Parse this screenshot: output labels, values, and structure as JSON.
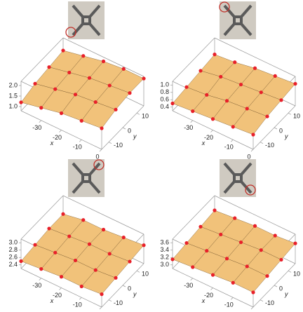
{
  "chart_data": [
    {
      "type": "surface3d",
      "xlabel": "x",
      "ylabel": "y",
      "xs": [
        -40,
        -30,
        -20,
        -10,
        0
      ],
      "ys": [
        -15,
        -5,
        5,
        15
      ],
      "z": [
        [
          1.2,
          1.4,
          1.6,
          1.7,
          1.8
        ],
        [
          1.4,
          1.6,
          1.8,
          1.9,
          2.0
        ],
        [
          1.5,
          1.7,
          1.9,
          2.0,
          2.1
        ],
        [
          1.6,
          1.8,
          2.0,
          2.1,
          2.1
        ]
      ],
      "xlim": [
        -40,
        0
      ],
      "ylim": [
        -15,
        15
      ],
      "zlim": [
        0.8,
        2.2
      ],
      "xticks": [
        -30,
        -20,
        -10,
        0
      ],
      "yticks": [
        10,
        0,
        -10
      ],
      "zticks": [
        {
          "value": 1,
          "label": "1.0"
        },
        1.5,
        {
          "value": 2,
          "label": "2.0"
        }
      ],
      "surface_color": "#f1c27a",
      "point_color": "#e8202a"
    },
    {
      "type": "surface3d",
      "xlabel": "x",
      "ylabel": "y",
      "xs": [
        -40,
        -30,
        -20,
        -10,
        0
      ],
      "ys": [
        -15,
        -5,
        5,
        15
      ],
      "z": [
        [
          0.5,
          0.55,
          0.6,
          0.65,
          0.7
        ],
        [
          0.55,
          0.6,
          0.7,
          0.75,
          0.8
        ],
        [
          0.6,
          0.7,
          0.75,
          0.8,
          0.85
        ],
        [
          0.65,
          0.7,
          0.8,
          0.85,
          0.9
        ]
      ],
      "xlim": [
        -40,
        0
      ],
      "ylim": [
        -15,
        15
      ],
      "zlim": [
        0.3,
        1.1
      ],
      "xticks": [
        -30,
        -20,
        -10,
        0
      ],
      "yticks": [
        10,
        0,
        -10
      ],
      "zticks": [
        0.4,
        0.6,
        0.8,
        {
          "value": 1,
          "label": "1.0"
        }
      ],
      "surface_color": "#f1c27a",
      "point_color": "#e8202a"
    },
    {
      "type": "surface3d",
      "xlabel": "x",
      "ylabel": "y",
      "xs": [
        -40,
        -30,
        -20,
        -10,
        0
      ],
      "ys": [
        -15,
        -5,
        5,
        15
      ],
      "z": [
        [
          2.5,
          2.55,
          2.6,
          2.6,
          2.65
        ],
        [
          2.55,
          2.6,
          2.65,
          2.65,
          2.7
        ],
        [
          2.6,
          2.65,
          2.7,
          2.7,
          2.75
        ],
        [
          2.6,
          2.7,
          2.7,
          2.75,
          2.8
        ]
      ],
      "xlim": [
        -40,
        0
      ],
      "ylim": [
        -15,
        15
      ],
      "zlim": [
        2.3,
        3.1
      ],
      "xticks": [
        -30,
        -20,
        -10,
        0
      ],
      "yticks": [
        10,
        0,
        -10
      ],
      "zticks": [
        2.4,
        2.6,
        2.8,
        {
          "value": 3,
          "label": "3.0"
        }
      ],
      "surface_color": "#f1c27a",
      "point_color": "#e8202a"
    },
    {
      "type": "surface3d",
      "xlabel": "x",
      "ylabel": "y",
      "xs": [
        -40,
        -30,
        -20,
        -10,
        0
      ],
      "ys": [
        -15,
        -5,
        5,
        15
      ],
      "z": [
        [
          3.15,
          3.2,
          3.25,
          3.3,
          3.3
        ],
        [
          3.2,
          3.25,
          3.3,
          3.35,
          3.35
        ],
        [
          3.25,
          3.3,
          3.35,
          3.4,
          3.4
        ],
        [
          3.3,
          3.35,
          3.4,
          3.4,
          3.45
        ]
      ],
      "xlim": [
        -40,
        0
      ],
      "ylim": [
        -15,
        15
      ],
      "zlim": [
        2.9,
        3.7
      ],
      "xticks": [
        -30,
        -20,
        -10,
        0
      ],
      "yticks": [
        10,
        0,
        -10
      ],
      "zticks": [
        {
          "value": 3,
          "label": "3.0"
        },
        3.2,
        3.4,
        3.6
      ],
      "surface_color": "#f1c27a",
      "point_color": "#e8202a"
    }
  ]
}
